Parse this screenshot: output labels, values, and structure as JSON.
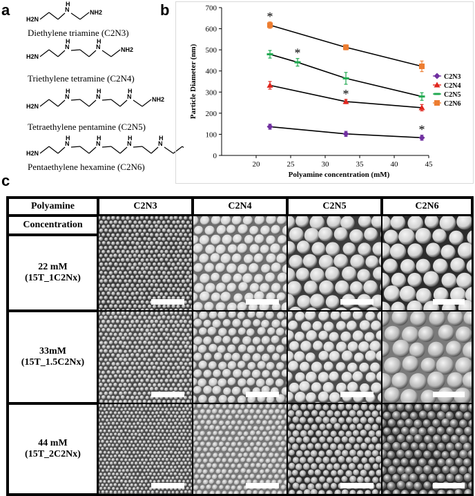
{
  "panels": {
    "a": "a",
    "b": "b",
    "c": "c"
  },
  "molecules": [
    {
      "name": "Diethylene triamine (C2N3)",
      "n_groups": 1
    },
    {
      "name": "Triethylene tetramine (C2N4)",
      "n_groups": 2
    },
    {
      "name": "Tetraethylene pentamine (C2N5)",
      "n_groups": 3
    },
    {
      "name": "Pentaethylene hexamine (C2N6)",
      "n_groups": 4
    }
  ],
  "atom_labels": {
    "h2n": "H2N",
    "nh2": "NH2",
    "h": "H",
    "n": "N"
  },
  "chart_data": {
    "type": "line",
    "xlabel": "Polyamine concentration (mM)",
    "ylabel": "Particle Diameter (nm)",
    "xlim": [
      15,
      45
    ],
    "ylim": [
      0,
      700
    ],
    "xticks": [
      20,
      25,
      30,
      35,
      40,
      45
    ],
    "yticks": [
      0,
      100,
      200,
      300,
      400,
      500,
      600,
      700
    ],
    "grid": false,
    "legend": "right",
    "annotations": [
      "*"
    ],
    "series": [
      {
        "name": "C2N3",
        "color": "#7030a0",
        "marker": "diamond",
        "points": [
          [
            22,
            136
          ],
          [
            33,
            102
          ],
          [
            44,
            84
          ]
        ],
        "errors": [
          12,
          12,
          12
        ],
        "star": [
          44,
          84
        ]
      },
      {
        "name": "C2N4",
        "color": "#e0261e",
        "marker": "triangle",
        "points": [
          [
            22,
            332
          ],
          [
            33,
            255
          ],
          [
            44,
            226
          ]
        ],
        "errors": [
          18,
          10,
          15
        ],
        "star": [
          33,
          255
        ]
      },
      {
        "name": "C2N5",
        "color": "#1fa84f",
        "marker": "dash",
        "points": [
          [
            22,
            479
          ],
          [
            26,
            441
          ],
          [
            33,
            365
          ],
          [
            44,
            279
          ]
        ],
        "errors": [
          18,
          18,
          28,
          18
        ],
        "star": [
          26,
          441
        ]
      },
      {
        "name": "C2N6",
        "color": "#ed7d31",
        "marker": "square",
        "points": [
          [
            22,
            617
          ],
          [
            33,
            512
          ],
          [
            44,
            422
          ]
        ],
        "errors": [
          15,
          12,
          25
        ],
        "star": [
          22,
          617
        ]
      }
    ]
  },
  "table": {
    "corner_label": "Polyamine",
    "columns": [
      "C2N3",
      "C2N4",
      "C2N5",
      "C2N6"
    ],
    "concentration_label": "Concentration",
    "rows": [
      {
        "line1": "22 mM",
        "line2": "(15T_1C2Nx)"
      },
      {
        "line1": "33mM",
        "line2": "(15T_1.5C2Nx)"
      },
      {
        "line1": "44 mM",
        "line2": "(15T_2C2Nx)"
      }
    ],
    "images": [
      [
        {
          "sphere": 7,
          "bg": "#3a3a3a",
          "fill": "#9a9a9a"
        },
        {
          "sphere": 16,
          "bg": "#6e6e6e",
          "fill": "#d4d4d4"
        },
        {
          "sphere": 22,
          "bg": "#3c3c3c",
          "fill": "#cfcfcf"
        },
        {
          "sphere": 24,
          "bg": "#2c2c2c",
          "fill": "#d2d2d2"
        }
      ],
      [
        {
          "sphere": 7,
          "bg": "#4a4a4a",
          "fill": "#a8a8a8"
        },
        {
          "sphere": 14,
          "bg": "#5a5a5a",
          "fill": "#c9c9c9"
        },
        {
          "sphere": 17,
          "bg": "#4a4a4a",
          "fill": "#d6d6d6"
        },
        {
          "sphere": 26,
          "bg": "#7a7a7a",
          "fill": "#b8b8b8"
        }
      ],
      [
        {
          "sphere": 6,
          "bg": "#4a4a4a",
          "fill": "#a5a5a5"
        },
        {
          "sphere": 9,
          "bg": "#7a7a7a",
          "fill": "#b4b4b4"
        },
        {
          "sphere": 11,
          "bg": "#2e2e2e",
          "fill": "#a6a6a6"
        },
        {
          "sphere": 13,
          "bg": "#2a2a2a",
          "fill": "#6a6a6a"
        }
      ]
    ]
  }
}
